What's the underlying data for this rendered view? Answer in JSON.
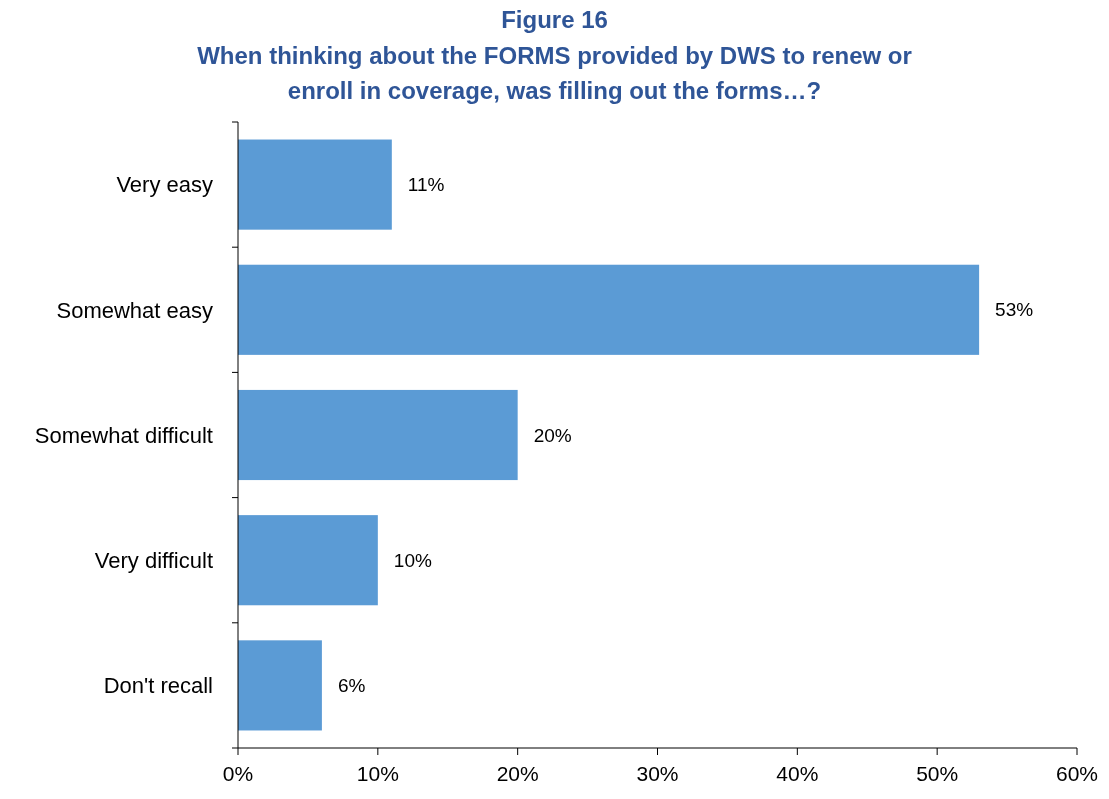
{
  "chart_data": {
    "type": "bar",
    "orientation": "horizontal",
    "title": "Figure 16",
    "subtitle": "When thinking about the FORMS provided by DWS to renew or enroll in coverage, was filling out the forms…?",
    "categories": [
      "Very easy",
      "Somewhat easy",
      "Somewhat difficult",
      "Very difficult",
      "Don't recall"
    ],
    "values": [
      11,
      53,
      20,
      10,
      6
    ],
    "value_labels": [
      "11%",
      "53%",
      "20%",
      "10%",
      "6%"
    ],
    "color": "#5b9bd5",
    "xlim": [
      0,
      60
    ],
    "xticks": [
      {
        "value": 0,
        "label": "0%"
      },
      {
        "value": 10,
        "label": "10%"
      },
      {
        "value": 20,
        "label": "20%"
      },
      {
        "value": 30,
        "label": "30%"
      },
      {
        "value": 40,
        "label": "40%"
      },
      {
        "value": 50,
        "label": "50%"
      },
      {
        "value": 60,
        "label": "60%"
      }
    ],
    "grid": false
  }
}
